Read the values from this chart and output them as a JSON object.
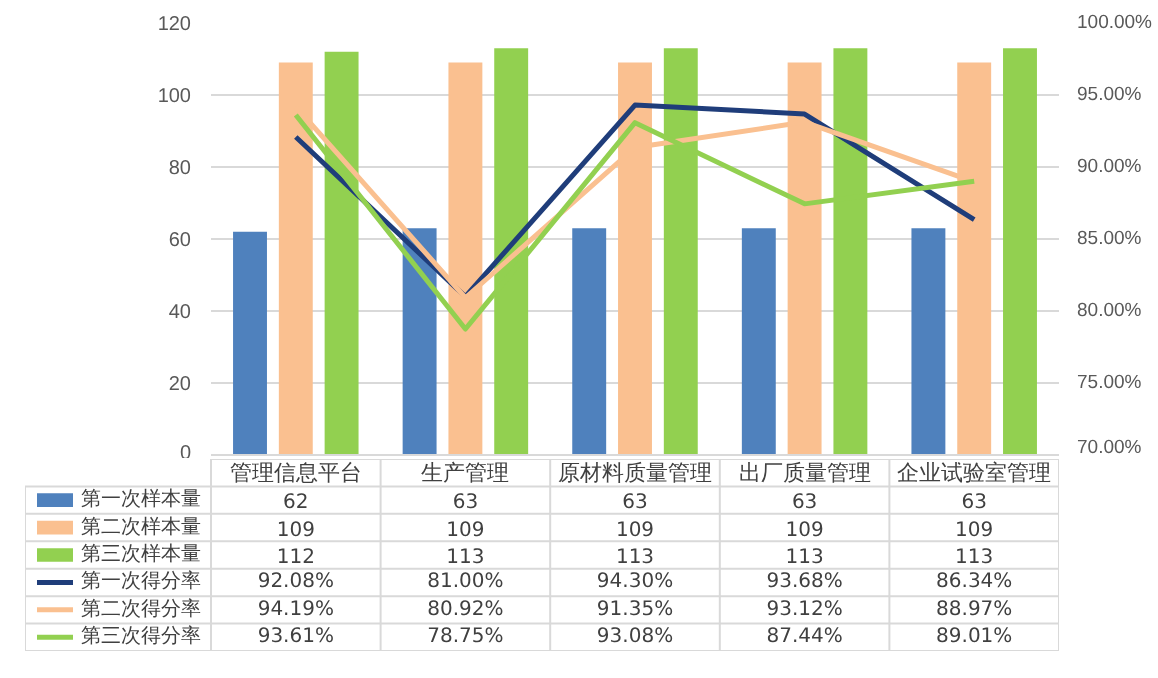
{
  "chart_data": {
    "type": "bar",
    "categories": [
      "管理信息平台",
      "生产管理",
      "原材料质量管理",
      "出厂质量管理",
      "企业试验室管理"
    ],
    "series": [
      {
        "name": "第一次样本量",
        "color": "#4f81bd",
        "values": [
          62,
          63,
          63,
          63,
          63
        ]
      },
      {
        "name": "第二次样本量",
        "color": "#fac090",
        "values": [
          109,
          109,
          109,
          109,
          109
        ]
      },
      {
        "name": "第三次样本量",
        "color": "#92d050",
        "values": [
          112,
          113,
          113,
          113,
          113
        ]
      },
      {
        "name": "第一次得分率",
        "type": "line",
        "axis": "y2",
        "color": "#1f3d7a",
        "values": [
          92.08,
          81.0,
          94.3,
          93.68,
          86.34
        ],
        "value_labels": [
          "92.08%",
          "81.00%",
          "94.30%",
          "93.68%",
          "86.34%"
        ]
      },
      {
        "name": "第二次得分率",
        "type": "line",
        "axis": "y2",
        "color": "#fac090",
        "values": [
          94.19,
          80.92,
          91.35,
          93.12,
          88.97
        ],
        "value_labels": [
          "94.19%",
          "80.92%",
          "91.35%",
          "93.12%",
          "88.97%"
        ]
      },
      {
        "name": "第三次得分率",
        "type": "line",
        "axis": "y2",
        "color": "#92d050",
        "values": [
          93.61,
          78.75,
          93.08,
          87.44,
          89.01
        ],
        "value_labels": [
          "93.61%",
          "78.75%",
          "93.08%",
          "87.44%",
          "89.01%"
        ]
      }
    ],
    "ylim": [
      0,
      120
    ],
    "yticks": [
      0,
      20,
      40,
      60,
      80,
      100,
      120
    ],
    "y2lim": [
      70,
      100
    ],
    "y2ticks": [
      {
        "value": 70,
        "label": "70.00%"
      },
      {
        "value": 75,
        "label": "75.00%"
      },
      {
        "value": 80,
        "label": "80.00%"
      },
      {
        "value": 85,
        "label": "85.00%"
      },
      {
        "value": 90,
        "label": "90.00%"
      },
      {
        "value": 95,
        "label": "95.00%"
      },
      {
        "value": 100,
        "label": "100.00%"
      }
    ],
    "grid": "y",
    "legend": "bottom",
    "data_labels": true
  }
}
